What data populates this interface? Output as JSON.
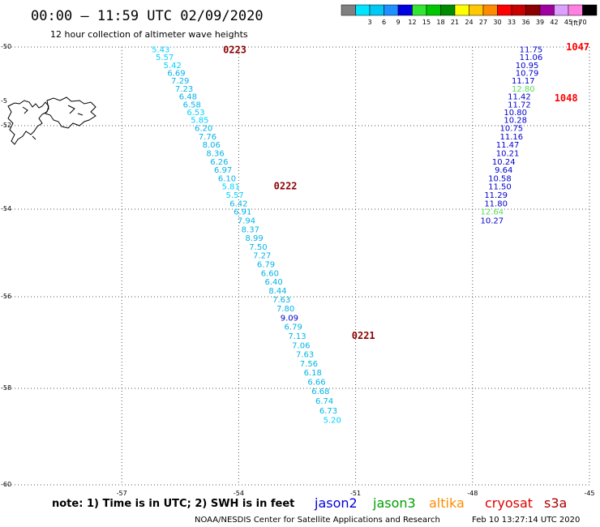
{
  "title": "00:00 — 11:59 UTC 02/09/2020",
  "subtitle": "12 hour collection of altimeter wave heights",
  "legend": {
    "unit": "(ft)",
    "bins": [
      {
        "label": "",
        "color": "#808080"
      },
      {
        "label": "3",
        "color": "#00e5ff"
      },
      {
        "label": "6",
        "color": "#00c8f5"
      },
      {
        "label": "9",
        "color": "#1e90ff"
      },
      {
        "label": "12",
        "color": "#0000e0"
      },
      {
        "label": "15",
        "color": "#33e633"
      },
      {
        "label": "18",
        "color": "#00c800"
      },
      {
        "label": "21",
        "color": "#008c00"
      },
      {
        "label": "24",
        "color": "#ffff00"
      },
      {
        "label": "27",
        "color": "#ffc800"
      },
      {
        "label": "30",
        "color": "#ff8c00"
      },
      {
        "label": "33",
        "color": "#ff0000"
      },
      {
        "label": "36",
        "color": "#c80000"
      },
      {
        "label": "39",
        "color": "#8c0000"
      },
      {
        "label": "42",
        "color": "#a000a0"
      },
      {
        "label": "45",
        "color": "#dda0ff"
      },
      {
        "label": "70",
        "color": "#ff80e0"
      },
      {
        "label": "",
        "color": "#000000"
      }
    ]
  },
  "axes": {
    "y_ticks": [
      "-50",
      "-52",
      "-54",
      "-56",
      "-58",
      "-60"
    ],
    "x_ticks": [
      "-57",
      "-54",
      "-51",
      "-48",
      "-45"
    ],
    "extra_left_label": "-5"
  },
  "chart_data": {
    "type": "scatter",
    "title": "00:00 — 11:59 UTC 02/09/2020",
    "subtitle": "12 hour collection of altimeter wave heights",
    "xlabel": "",
    "ylabel": "",
    "unit": "ft",
    "xlim": [
      -60,
      -45
    ],
    "ylim": [
      -60,
      -50
    ],
    "grid": true,
    "series": [
      {
        "name": "",
        "passes": [
          {
            "label": "0223",
            "lon": -54.1,
            "lat": -50.07
          },
          {
            "label": "0222",
            "lon": -52.8,
            "lat": -53.45
          },
          {
            "label": "0221",
            "lon": -50.8,
            "lat": -56.85
          }
        ],
        "points": [
          {
            "lon": -56.0,
            "lat": -50.05,
            "value": "5.43",
            "color": "#00d2ff"
          },
          {
            "lon": -55.9,
            "lat": -50.25,
            "value": "5.57",
            "color": "#00d2ff"
          },
          {
            "lon": -55.7,
            "lat": -50.45,
            "value": "5.42",
            "color": "#00d2ff"
          },
          {
            "lon": -55.6,
            "lat": -50.65,
            "value": "6.69",
            "color": "#00b4e6"
          },
          {
            "lon": -55.5,
            "lat": -50.85,
            "value": "7.29",
            "color": "#00b4e6"
          },
          {
            "lon": -55.4,
            "lat": -51.05,
            "value": "7.23",
            "color": "#00b4e6"
          },
          {
            "lon": -55.3,
            "lat": -51.25,
            "value": "6.48",
            "color": "#00b4e6"
          },
          {
            "lon": -55.2,
            "lat": -51.45,
            "value": "6.58",
            "color": "#00b4e6"
          },
          {
            "lon": -55.1,
            "lat": -51.65,
            "value": "6.53",
            "color": "#00d2ff"
          },
          {
            "lon": -55.0,
            "lat": -51.85,
            "value": "5.85",
            "color": "#00d2ff"
          },
          {
            "lon": -54.9,
            "lat": -52.05,
            "value": "6.20",
            "color": "#00b4e6"
          },
          {
            "lon": -54.8,
            "lat": -52.25,
            "value": "7.76",
            "color": "#00b4e6"
          },
          {
            "lon": -54.7,
            "lat": -52.45,
            "value": "8.06",
            "color": "#00b4e6"
          },
          {
            "lon": -54.6,
            "lat": -52.65,
            "value": "8.36",
            "color": "#00b4e6"
          },
          {
            "lon": -54.5,
            "lat": -52.85,
            "value": "6.26",
            "color": "#00b4e6"
          },
          {
            "lon": -54.4,
            "lat": -53.05,
            "value": "6.97",
            "color": "#00b4e6"
          },
          {
            "lon": -54.3,
            "lat": -53.25,
            "value": "6.10",
            "color": "#00b4e6"
          },
          {
            "lon": -54.2,
            "lat": -53.45,
            "value": "5.81",
            "color": "#00d2ff"
          },
          {
            "lon": -54.1,
            "lat": -53.65,
            "value": "5.57",
            "color": "#00d2ff"
          },
          {
            "lon": -54.0,
            "lat": -53.85,
            "value": "6.42",
            "color": "#00b4e6"
          },
          {
            "lon": -53.9,
            "lat": -54.05,
            "value": "6.91",
            "color": "#00b4e6"
          },
          {
            "lon": -53.8,
            "lat": -54.25,
            "value": "7.94",
            "color": "#00b4e6"
          },
          {
            "lon": -53.7,
            "lat": -54.45,
            "value": "8.37",
            "color": "#00b4e6"
          },
          {
            "lon": -53.6,
            "lat": -54.65,
            "value": "8.99",
            "color": "#00b4e6"
          },
          {
            "lon": -53.5,
            "lat": -54.85,
            "value": "7.50",
            "color": "#00b4e6"
          },
          {
            "lon": -53.4,
            "lat": -55.05,
            "value": "7.27",
            "color": "#00b4e6"
          },
          {
            "lon": -53.3,
            "lat": -55.25,
            "value": "6.79",
            "color": "#00b4e6"
          },
          {
            "lon": -53.2,
            "lat": -55.45,
            "value": "6.60",
            "color": "#00b4e6"
          },
          {
            "lon": -53.1,
            "lat": -55.65,
            "value": "6.40",
            "color": "#00b4e6"
          },
          {
            "lon": -53.0,
            "lat": -55.85,
            "value": "8.44",
            "color": "#00b4e6"
          },
          {
            "lon": -52.9,
            "lat": -56.05,
            "value": "7.63",
            "color": "#00b4e6"
          },
          {
            "lon": -52.8,
            "lat": -56.25,
            "value": "7.80",
            "color": "#00b4e6"
          },
          {
            "lon": -52.7,
            "lat": -56.45,
            "value": "9.09",
            "color": "#0000cc"
          },
          {
            "lon": -52.6,
            "lat": -56.65,
            "value": "6.79",
            "color": "#00b4e6"
          },
          {
            "lon": -52.5,
            "lat": -56.85,
            "value": "7.13",
            "color": "#00b4e6"
          },
          {
            "lon": -52.4,
            "lat": -57.05,
            "value": "7.06",
            "color": "#00b4e6"
          },
          {
            "lon": -52.3,
            "lat": -57.25,
            "value": "7.63",
            "color": "#00b4e6"
          },
          {
            "lon": -52.2,
            "lat": -57.45,
            "value": "7.56",
            "color": "#00b4e6"
          },
          {
            "lon": -52.1,
            "lat": -57.65,
            "value": "6.18",
            "color": "#00b4e6"
          },
          {
            "lon": -52.0,
            "lat": -57.85,
            "value": "6.66",
            "color": "#00b4e6"
          },
          {
            "lon": -51.9,
            "lat": -58.05,
            "value": "6.68",
            "color": "#00b4e6"
          },
          {
            "lon": -51.8,
            "lat": -58.25,
            "value": "6.74",
            "color": "#00b4e6"
          },
          {
            "lon": -51.7,
            "lat": -58.45,
            "value": "6.73",
            "color": "#00b4e6"
          },
          {
            "lon": -51.6,
            "lat": -58.65,
            "value": "5.20",
            "color": "#00d2ff"
          }
        ]
      },
      {
        "name": "",
        "passes": [
          {
            "label": "1047",
            "lon": -45.3,
            "lat": -50.0
          },
          {
            "label": "1048",
            "lon": -45.6,
            "lat": -51.3
          }
        ],
        "points": [
          {
            "lon": -46.5,
            "lat": -50.05,
            "value": "11.75",
            "color": "#0000cc"
          },
          {
            "lon": -46.5,
            "lat": -50.25,
            "value": "11.06",
            "color": "#0000cc"
          },
          {
            "lon": -46.6,
            "lat": -50.45,
            "value": "10.95",
            "color": "#0000cc"
          },
          {
            "lon": -46.6,
            "lat": -50.65,
            "value": "10.79",
            "color": "#0000cc"
          },
          {
            "lon": -46.7,
            "lat": -50.85,
            "value": "11.17",
            "color": "#0000cc"
          },
          {
            "lon": -46.7,
            "lat": -51.05,
            "value": "12.80",
            "color": "#55dd55"
          },
          {
            "lon": -46.8,
            "lat": -51.25,
            "value": "11.42",
            "color": "#0000cc"
          },
          {
            "lon": -46.8,
            "lat": -51.45,
            "value": "11.72",
            "color": "#0000cc"
          },
          {
            "lon": -46.9,
            "lat": -51.65,
            "value": "10.80",
            "color": "#0000cc"
          },
          {
            "lon": -46.9,
            "lat": -51.85,
            "value": "10.28",
            "color": "#0000cc"
          },
          {
            "lon": -47.0,
            "lat": -52.05,
            "value": "10.75",
            "color": "#0000cc"
          },
          {
            "lon": -47.0,
            "lat": -52.25,
            "value": "11.16",
            "color": "#0000cc"
          },
          {
            "lon": -47.1,
            "lat": -52.45,
            "value": "11.47",
            "color": "#0000cc"
          },
          {
            "lon": -47.1,
            "lat": -52.65,
            "value": "10.21",
            "color": "#0000cc"
          },
          {
            "lon": -47.2,
            "lat": -52.85,
            "value": "10.24",
            "color": "#0000cc"
          },
          {
            "lon": -47.2,
            "lat": -53.05,
            "value": "9.64",
            "color": "#0000cc"
          },
          {
            "lon": -47.3,
            "lat": -53.25,
            "value": "10.58",
            "color": "#0000cc"
          },
          {
            "lon": -47.3,
            "lat": -53.45,
            "value": "11.50",
            "color": "#0000cc"
          },
          {
            "lon": -47.4,
            "lat": -53.65,
            "value": "11.29",
            "color": "#0000cc"
          },
          {
            "lon": -47.4,
            "lat": -53.85,
            "value": "11.80",
            "color": "#0000cc"
          },
          {
            "lon": -47.5,
            "lat": -54.05,
            "value": "12.64",
            "color": "#55dd55"
          },
          {
            "lon": -47.5,
            "lat": -54.25,
            "value": "10.27",
            "color": "#0000cc"
          }
        ]
      }
    ]
  },
  "note": "note:  1) Time is in UTC; 2) SWH is in feet",
  "satellites": [
    {
      "name": "jason2",
      "color": "#0000dd"
    },
    {
      "name": "jason3",
      "color": "#00a000"
    },
    {
      "name": "altika",
      "color": "#ff8c00"
    },
    {
      "name": "cryosat",
      "color": "#dd0000"
    },
    {
      "name": "s3a",
      "color": "#aa0000"
    }
  ],
  "credit": "NOAA/NESDIS Center for Satellite Applications and Research",
  "timestamp": "Feb 10 13:27:14 UTC 2020"
}
